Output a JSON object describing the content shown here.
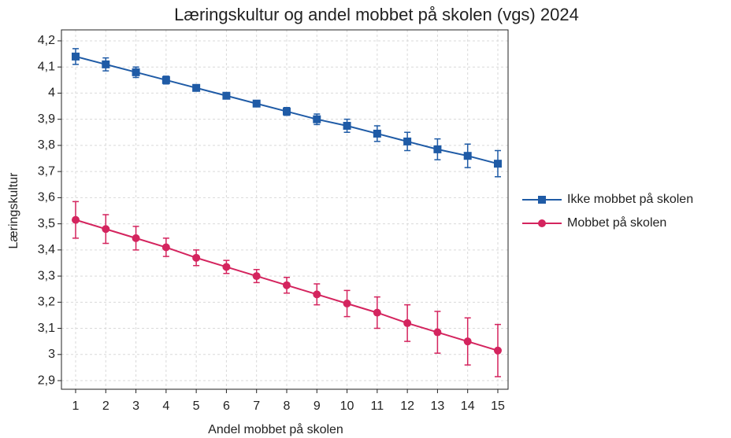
{
  "chart_data": {
    "type": "line",
    "title": "Læringskultur og andel mobbet på skolen (vgs) 2024",
    "xlabel": "Andel mobbet på skolen",
    "ylabel": "Læringskultur",
    "x": [
      1,
      2,
      3,
      4,
      5,
      6,
      7,
      8,
      9,
      10,
      11,
      12,
      13,
      14,
      15
    ],
    "series": [
      {
        "name": "Ikke mobbet på skolen",
        "color": "#1f5ba6",
        "marker": "square",
        "values": [
          4.14,
          4.11,
          4.08,
          4.05,
          4.02,
          3.99,
          3.96,
          3.93,
          3.9,
          3.875,
          3.845,
          3.815,
          3.785,
          3.76,
          3.73
        ],
        "errors": [
          0.03,
          0.025,
          0.02,
          0.015,
          0.01,
          0.01,
          0.01,
          0.015,
          0.02,
          0.025,
          0.03,
          0.035,
          0.04,
          0.045,
          0.05
        ]
      },
      {
        "name": "Mobbet på skolen",
        "color": "#d4245e",
        "marker": "circle",
        "values": [
          3.515,
          3.48,
          3.445,
          3.41,
          3.37,
          3.335,
          3.3,
          3.265,
          3.23,
          3.195,
          3.16,
          3.12,
          3.085,
          3.05,
          3.015
        ],
        "errors": [
          0.07,
          0.055,
          0.045,
          0.035,
          0.03,
          0.025,
          0.025,
          0.03,
          0.04,
          0.05,
          0.06,
          0.07,
          0.08,
          0.09,
          0.1
        ]
      }
    ],
    "xlim": [
      0.53,
      15.34
    ],
    "ylim": [
      2.867,
      4.242
    ],
    "xticks": [
      1,
      2,
      3,
      4,
      5,
      6,
      7,
      8,
      9,
      10,
      11,
      12,
      13,
      14,
      15
    ],
    "yticks": [
      {
        "value": 2.9,
        "label": "2,9"
      },
      3,
      {
        "value": 3.1,
        "label": "3,1"
      },
      {
        "value": 3.2,
        "label": "3,2"
      },
      {
        "value": 3.3,
        "label": "3,3"
      },
      {
        "value": 3.4,
        "label": "3,4"
      },
      {
        "value": 3.5,
        "label": "3,5"
      },
      {
        "value": 3.6,
        "label": "3,6"
      },
      {
        "value": 3.7,
        "label": "3,7"
      },
      {
        "value": 3.8,
        "label": "3,8"
      },
      {
        "value": 3.9,
        "label": "3,9"
      },
      4,
      {
        "value": 4.1,
        "label": "4,1"
      },
      {
        "value": 4.2,
        "label": "4,2"
      }
    ],
    "grid": true,
    "legend": "right"
  }
}
